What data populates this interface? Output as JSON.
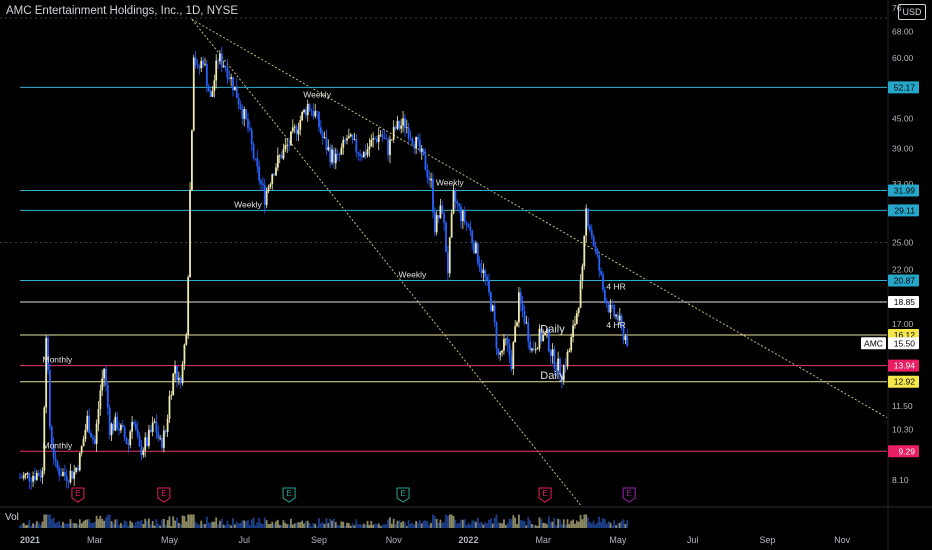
{
  "chart_data": {
    "type": "candlestick",
    "title": "AMC Entertainment Holdings, Inc., 1D, NYSE",
    "currency": "USD",
    "volume_label": "Vol",
    "ticker_label": "AMC",
    "y_scale": "log",
    "ylim": [
      7.2,
      76
    ],
    "y_ticks": [
      {
        "value": 76,
        "label": "76"
      },
      {
        "value": 68,
        "label": "68.00"
      },
      {
        "value": 60,
        "label": "60.00"
      },
      {
        "value": 45,
        "label": "45.00"
      },
      {
        "value": 39,
        "label": "39.00"
      },
      {
        "value": 33,
        "label": "33.00"
      },
      {
        "value": 25,
        "label": "25.00"
      },
      {
        "value": 22,
        "label": "22.00"
      },
      {
        "value": 17,
        "label": "17.00"
      },
      {
        "value": 13,
        "label": "13.00"
      },
      {
        "value": 11.5,
        "label": "11.50"
      },
      {
        "value": 10.3,
        "label": "10.30"
      },
      {
        "value": 8.1,
        "label": "8.10"
      }
    ],
    "x_ticks": [
      "2021",
      "Mar",
      "May",
      "Jul",
      "Sep",
      "Nov",
      "2022",
      "Mar",
      "May",
      "Jul",
      "Sep",
      "Nov"
    ],
    "x_range_months": [
      0,
      23.2
    ],
    "x_tick_months": [
      0,
      2,
      4,
      6,
      8,
      10,
      12,
      14,
      16,
      18,
      20,
      22
    ],
    "price_path": [
      [
        0.0,
        8.2
      ],
      [
        0.3,
        8.3
      ],
      [
        0.6,
        8.4
      ],
      [
        0.7,
        16.5
      ],
      [
        0.8,
        10.5
      ],
      [
        0.95,
        8.6
      ],
      [
        1.2,
        8.3
      ],
      [
        1.45,
        8.4
      ],
      [
        1.6,
        9.0
      ],
      [
        1.8,
        10.8
      ],
      [
        2.0,
        9.6
      ],
      [
        2.15,
        12.4
      ],
      [
        2.25,
        13.8
      ],
      [
        2.4,
        10.4
      ],
      [
        2.6,
        10.6
      ],
      [
        2.9,
        9.6
      ],
      [
        3.0,
        11.0
      ],
      [
        3.2,
        9.3
      ],
      [
        3.4,
        9.7
      ],
      [
        3.6,
        10.6
      ],
      [
        3.75,
        9.6
      ],
      [
        3.9,
        10.2
      ],
      [
        4.0,
        12.0
      ],
      [
        4.15,
        14.0
      ],
      [
        4.25,
        12.8
      ],
      [
        4.35,
        13.9
      ],
      [
        4.45,
        16.8
      ],
      [
        4.5,
        22.0
      ],
      [
        4.55,
        32.0
      ],
      [
        4.6,
        44.0
      ],
      [
        4.65,
        62.0
      ],
      [
        4.75,
        56.0
      ],
      [
        4.9,
        60.0
      ],
      [
        5.1,
        49.0
      ],
      [
        5.3,
        60.0
      ],
      [
        5.5,
        58.0
      ],
      [
        5.7,
        53.0
      ],
      [
        5.9,
        48.0
      ],
      [
        6.1,
        43.0
      ],
      [
        6.3,
        36.0
      ],
      [
        6.55,
        31.0
      ],
      [
        6.75,
        35.0
      ],
      [
        7.0,
        38.0
      ],
      [
        7.2,
        40.0
      ],
      [
        7.45,
        44.0
      ],
      [
        7.7,
        48.0
      ],
      [
        7.9,
        46.0
      ],
      [
        8.1,
        41.0
      ],
      [
        8.3,
        38.0
      ],
      [
        8.5,
        37.0
      ],
      [
        8.75,
        41.0
      ],
      [
        9.0,
        39.0
      ],
      [
        9.2,
        38.0
      ],
      [
        9.4,
        40.0
      ],
      [
        9.65,
        42.0
      ],
      [
        9.85,
        39.0
      ],
      [
        10.05,
        43.0
      ],
      [
        10.3,
        44.0
      ],
      [
        10.6,
        40.0
      ],
      [
        10.85,
        36.0
      ],
      [
        11.0,
        33.0
      ],
      [
        11.1,
        27.0
      ],
      [
        11.3,
        29.5
      ],
      [
        11.45,
        22.0
      ],
      [
        11.6,
        31.0
      ],
      [
        11.8,
        28.5
      ],
      [
        12.0,
        27.0
      ],
      [
        12.2,
        24.0
      ],
      [
        12.45,
        21.0
      ],
      [
        12.65,
        18.0
      ],
      [
        12.8,
        14.5
      ],
      [
        13.0,
        15.5
      ],
      [
        13.15,
        14.2
      ],
      [
        13.35,
        19.0
      ],
      [
        13.5,
        17.5
      ],
      [
        13.7,
        15.0
      ],
      [
        13.9,
        16.0
      ],
      [
        14.1,
        16.0
      ],
      [
        14.25,
        14.5
      ],
      [
        14.5,
        13.5
      ],
      [
        14.7,
        15.0
      ],
      [
        14.9,
        18.0
      ],
      [
        15.05,
        21.5
      ],
      [
        15.15,
        29.0
      ],
      [
        15.25,
        27.0
      ],
      [
        15.45,
        23.0
      ],
      [
        15.6,
        20.0
      ],
      [
        15.8,
        18.0
      ],
      [
        16.0,
        17.5
      ],
      [
        16.1,
        16.5
      ],
      [
        16.3,
        15.5
      ]
    ],
    "horizontal_levels": [
      {
        "value": 52.17,
        "label": "52.17",
        "color": "#2fb0cf",
        "badge_bg": "#26a6c8",
        "badge_text": "#000000"
      },
      {
        "value": 31.99,
        "label": "31.99",
        "color": "#2fb0cf",
        "badge_bg": "#26a6c8",
        "badge_text": "#000000"
      },
      {
        "value": 29.11,
        "label": "29.11",
        "color": "#2fb0cf",
        "badge_bg": "#26a6c8",
        "badge_text": "#000000"
      },
      {
        "value": 20.87,
        "label": "20.87",
        "color": "#2fb0cf",
        "badge_bg": "#26a6c8",
        "badge_text": "#000000"
      },
      {
        "value": 18.85,
        "label": "18.85",
        "color": "#e0e0e0",
        "badge_bg": "#ffffff",
        "badge_text": "#000000"
      },
      {
        "value": 16.12,
        "label": "16.12",
        "color": "#e8e29a",
        "badge_bg": "#f5e84a",
        "badge_text": "#000000"
      },
      {
        "value": 15.5,
        "label": "15.50",
        "color": null,
        "badge_bg": "#ffffff",
        "badge_text": "#000000"
      },
      {
        "value": 13.94,
        "label": "13.94",
        "color": "#e4386e",
        "badge_bg": "#e91e63",
        "badge_text": "#ffffff"
      },
      {
        "value": 12.92,
        "label": "12.92",
        "color": "#e8e29a",
        "badge_bg": "#f5e84a",
        "badge_text": "#000000"
      },
      {
        "value": 9.29,
        "label": "9.29",
        "color": "#e4386e",
        "badge_bg": "#e91e63",
        "badge_text": "#ffffff"
      }
    ],
    "trendlines": [
      {
        "from": [
          4.6,
          72.0
        ],
        "to": [
          23.2,
          10.9
        ],
        "color": "#d6d080"
      },
      {
        "from": [
          4.6,
          72.0
        ],
        "to": [
          15.0,
          7.2
        ],
        "color": "#d6d080"
      }
    ],
    "annotations": [
      {
        "text": "Weekly",
        "at": [
          7.95,
          49.0
        ]
      },
      {
        "text": "Weekly",
        "at": [
          11.5,
          32.3
        ]
      },
      {
        "text": "Weekly",
        "at": [
          6.1,
          29.1
        ]
      },
      {
        "text": "Weekly",
        "at": [
          10.5,
          20.9
        ]
      },
      {
        "text": "Monthly",
        "at": [
          1.0,
          13.94
        ]
      },
      {
        "text": "Monthly",
        "at": [
          1.0,
          9.29
        ]
      },
      {
        "text": "Daily",
        "at": [
          14.25,
          16.1
        ]
      },
      {
        "text": "Daily",
        "at": [
          14.25,
          12.9
        ]
      },
      {
        "text": "4 HR",
        "at": [
          15.95,
          19.7
        ]
      },
      {
        "text": "4 HR",
        "at": [
          15.95,
          16.45
        ]
      }
    ],
    "earnings_markers": [
      {
        "label": "E",
        "month": 1.55,
        "color": "#e91e63"
      },
      {
        "label": "E",
        "month": 3.85,
        "color": "#e91e63"
      },
      {
        "label": "E",
        "month": 7.2,
        "color": "#26a69a"
      },
      {
        "label": "E",
        "month": 10.25,
        "color": "#26a69a"
      },
      {
        "label": "E",
        "month": 14.05,
        "color": "#e91e63"
      },
      {
        "label": "E",
        "month": 16.3,
        "color": "#9c27b0"
      }
    ]
  }
}
